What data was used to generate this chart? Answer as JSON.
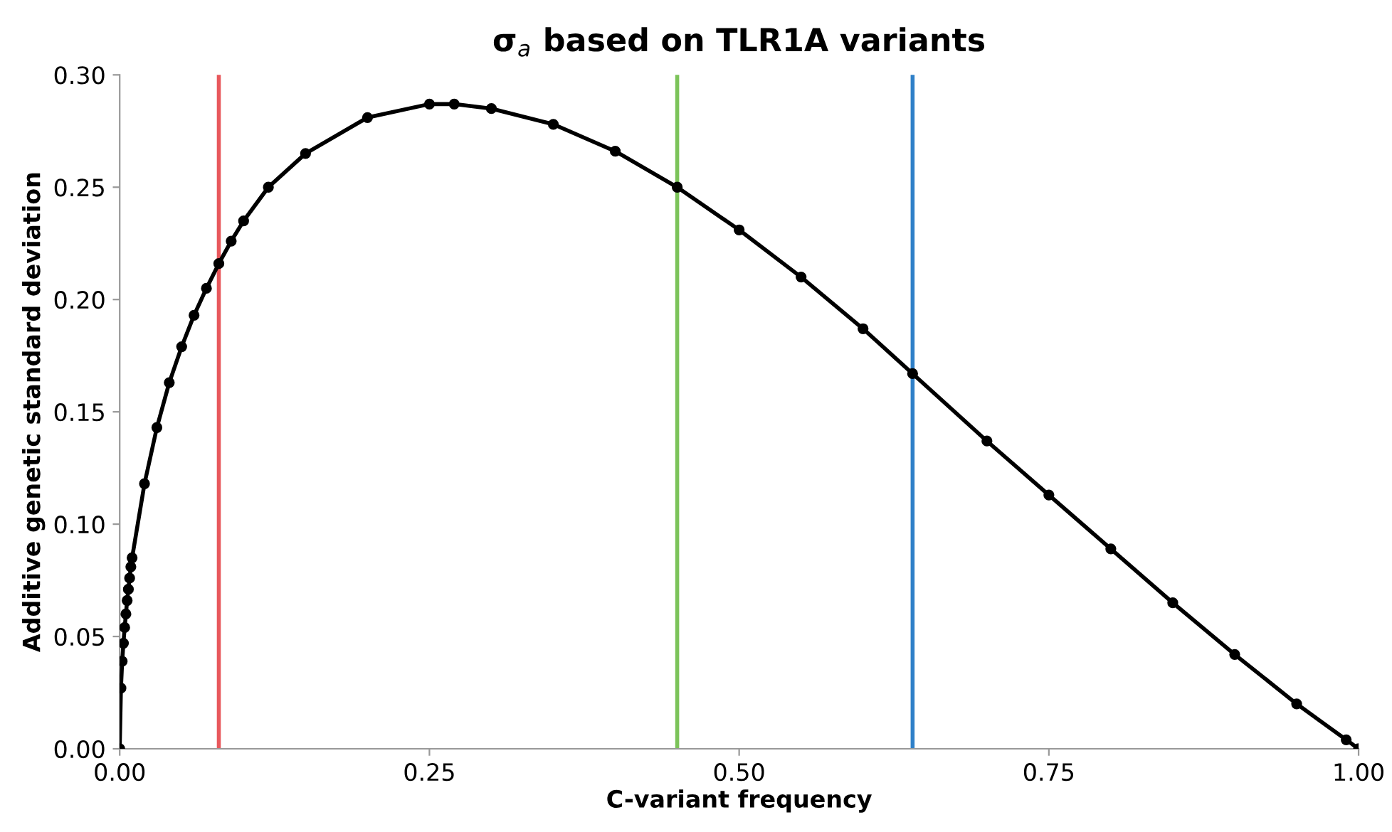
{
  "chart_data": {
    "type": "line",
    "title": "σ$_{a}$ based on TLR1A variants",
    "xlabel": "C-variant frequency",
    "ylabel": "Additive genetic standard deviation",
    "x": [
      0,
      0.001,
      0.002,
      0.003,
      0.004,
      0.005,
      0.006,
      0.007,
      0.008,
      0.009,
      0.01,
      0.02,
      0.03,
      0.04,
      0.05,
      0.06,
      0.07,
      0.08,
      0.09,
      0.1,
      0.12,
      0.15,
      0.2,
      0.25,
      0.27,
      0.3,
      0.35,
      0.4,
      0.45,
      0.5,
      0.55,
      0.6,
      0.64,
      0.7,
      0.75,
      0.8,
      0.85,
      0.9,
      0.95,
      0.99,
      1.0
    ],
    "series": [
      {
        "color": "#000000",
        "values": [
          0,
          0.027,
          0.039,
          0.047,
          0.054,
          0.06,
          0.066,
          0.071,
          0.076,
          0.081,
          0.085,
          0.118,
          0.143,
          0.163,
          0.179,
          0.193,
          0.205,
          0.216,
          0.226,
          0.235,
          0.25,
          0.265,
          0.281,
          0.287,
          0.287,
          0.285,
          0.278,
          0.266,
          0.25,
          0.231,
          0.21,
          0.187,
          0.167,
          0.137,
          0.113,
          0.089,
          0.065,
          0.042,
          0.02,
          0.004,
          0
        ]
      }
    ],
    "marker": "circle",
    "line_style": "solid",
    "grid": false,
    "legend": false,
    "xlim": [
      0,
      1
    ],
    "xticks": [
      {
        "value": 0,
        "label": "0.00"
      },
      {
        "value": 0.25,
        "label": "0.25"
      },
      {
        "value": 0.5,
        "label": "0.50"
      },
      {
        "value": 0.75,
        "label": "0.75"
      },
      {
        "value": 1,
        "label": "1.00"
      }
    ],
    "ylim": [
      0,
      0.3
    ],
    "yticks": [
      {
        "value": 0,
        "label": "0.00"
      },
      {
        "value": 0.05,
        "label": "0.05"
      },
      {
        "value": 0.1,
        "label": "0.10"
      },
      {
        "value": 0.15,
        "label": "0.15"
      },
      {
        "value": 0.2,
        "label": "0.20"
      },
      {
        "value": 0.25,
        "label": "0.25"
      },
      {
        "value": 0.3,
        "label": "0.30"
      }
    ],
    "ref_lines": [
      {
        "axis": "x",
        "value": 0.08,
        "color": "#e8585c"
      },
      {
        "axis": "x",
        "value": 0.45,
        "color": "#7cc35a"
      },
      {
        "axis": "x",
        "value": 0.64,
        "color": "#2f80c8"
      }
    ]
  }
}
